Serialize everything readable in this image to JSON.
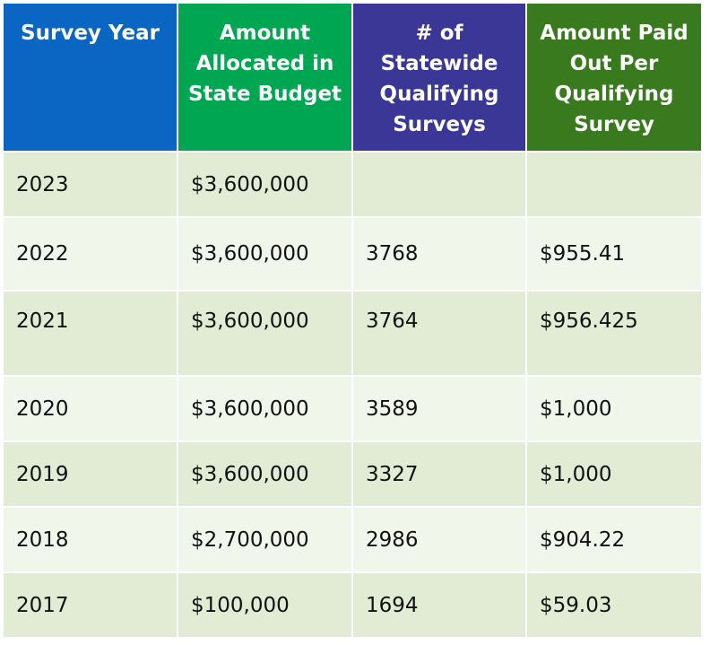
{
  "colors": {
    "header_survey_year": "#0a66c2",
    "header_amount_allocated": "#00a651",
    "header_num_surveys": "#3a3796",
    "header_amount_paid": "#3a7a1e",
    "row_dark": "#e2ecd5",
    "row_light": "#f1f6eb"
  },
  "table": {
    "headers": [
      "Survey Year",
      "Amount\nAllocated in\nState Budget",
      "# of\nStatewide\nQualifying\nSurveys",
      "Amount Paid\nOut Per\nQualifying\nSurvey"
    ],
    "rows": [
      [
        "2023",
        "$3,600,000",
        "",
        ""
      ],
      [
        "2022",
        "$3,600,000",
        "3768",
        "$955.41"
      ],
      [
        "2021",
        "$3,600,000",
        "3764",
        "$956.425"
      ],
      [
        "2020",
        "$3,600,000",
        "3589",
        "$1,000"
      ],
      [
        "2019",
        "$3,600,000",
        "3327",
        "$1,000"
      ],
      [
        "2018",
        "$2,700,000",
        "2986",
        "$904.22"
      ],
      [
        "2017",
        "$100,000",
        "1694",
        "$59.03"
      ]
    ]
  }
}
